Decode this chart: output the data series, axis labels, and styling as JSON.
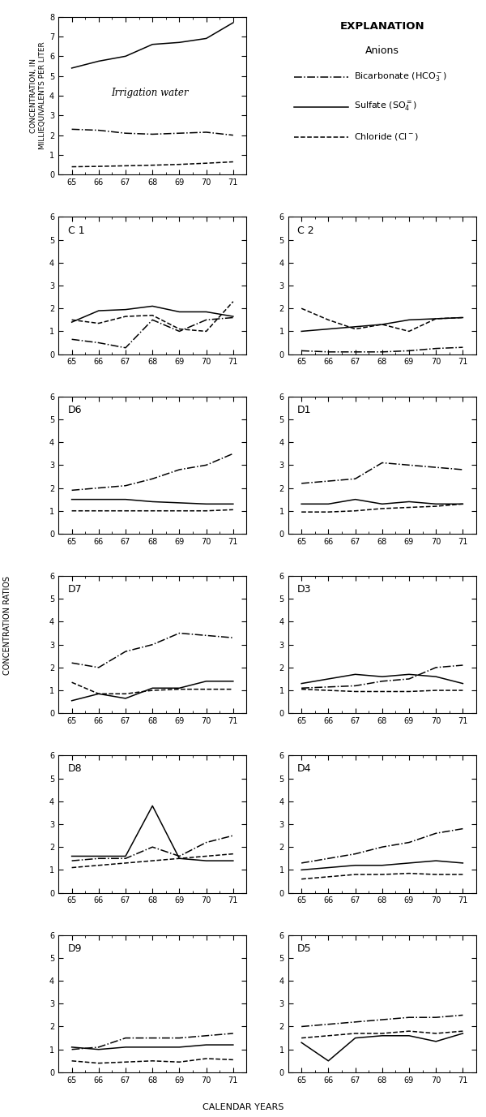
{
  "x": [
    65,
    66,
    67,
    68,
    69,
    70,
    71
  ],
  "irr": {
    "sulfate": [
      5.4,
      5.75,
      6.0,
      6.6,
      6.7,
      6.9,
      7.7
    ],
    "bicarbonate": [
      2.3,
      2.25,
      2.1,
      2.05,
      2.1,
      2.15,
      2.0
    ],
    "chloride": [
      0.4,
      0.42,
      0.45,
      0.48,
      0.52,
      0.58,
      0.65
    ]
  },
  "C1": {
    "sulfate": [
      1.4,
      1.9,
      1.95,
      2.1,
      1.85,
      1.85,
      1.65
    ],
    "bicarbonate": [
      0.65,
      0.5,
      0.28,
      1.5,
      1.0,
      1.5,
      1.6
    ],
    "chloride": [
      1.5,
      1.35,
      1.65,
      1.7,
      1.1,
      1.0,
      2.3
    ]
  },
  "C2": {
    "sulfate": [
      1.0,
      1.1,
      1.2,
      1.3,
      1.5,
      1.55,
      1.6
    ],
    "bicarbonate": [
      0.15,
      0.1,
      0.1,
      0.1,
      0.15,
      0.25,
      0.3
    ],
    "chloride": [
      2.0,
      1.5,
      1.1,
      1.3,
      1.0,
      1.55,
      1.6
    ]
  },
  "D6": {
    "sulfate": [
      1.5,
      1.5,
      1.5,
      1.4,
      1.35,
      1.3,
      1.3
    ],
    "bicarbonate": [
      1.9,
      2.0,
      2.1,
      2.4,
      2.8,
      3.0,
      3.5
    ],
    "chloride": [
      1.0,
      1.0,
      1.0,
      1.0,
      1.0,
      1.0,
      1.05
    ]
  },
  "D1": {
    "sulfate": [
      1.3,
      1.3,
      1.5,
      1.3,
      1.4,
      1.3,
      1.3
    ],
    "bicarbonate": [
      2.2,
      2.3,
      2.4,
      3.1,
      3.0,
      2.9,
      2.8
    ],
    "chloride": [
      0.95,
      0.95,
      1.0,
      1.1,
      1.15,
      1.2,
      1.3
    ]
  },
  "D7": {
    "sulfate": [
      0.55,
      0.85,
      0.65,
      1.1,
      1.1,
      1.4,
      1.4
    ],
    "bicarbonate": [
      2.2,
      2.0,
      2.7,
      3.0,
      3.5,
      3.4,
      3.3
    ],
    "chloride": [
      1.35,
      0.85,
      0.85,
      1.0,
      1.05,
      1.05,
      1.05
    ]
  },
  "D3": {
    "sulfate": [
      1.3,
      1.5,
      1.7,
      1.6,
      1.7,
      1.6,
      1.3
    ],
    "bicarbonate": [
      1.1,
      1.15,
      1.2,
      1.4,
      1.5,
      2.0,
      2.1
    ],
    "chloride": [
      1.05,
      1.0,
      0.95,
      0.95,
      0.95,
      1.0,
      1.0
    ]
  },
  "D8": {
    "sulfate": [
      1.6,
      1.6,
      1.6,
      3.8,
      1.5,
      1.4,
      1.4
    ],
    "bicarbonate": [
      1.4,
      1.5,
      1.5,
      2.0,
      1.6,
      2.2,
      2.5
    ],
    "chloride": [
      1.1,
      1.2,
      1.3,
      1.4,
      1.5,
      1.6,
      1.7
    ]
  },
  "D4": {
    "sulfate": [
      1.0,
      1.1,
      1.2,
      1.2,
      1.3,
      1.4,
      1.3
    ],
    "bicarbonate": [
      1.3,
      1.5,
      1.7,
      2.0,
      2.2,
      2.6,
      2.8
    ],
    "chloride": [
      0.6,
      0.7,
      0.8,
      0.8,
      0.85,
      0.8,
      0.8
    ]
  },
  "D9": {
    "sulfate": [
      1.1,
      1.0,
      1.1,
      1.1,
      1.1,
      1.2,
      1.2
    ],
    "bicarbonate": [
      1.0,
      1.1,
      1.5,
      1.5,
      1.5,
      1.6,
      1.7
    ],
    "chloride": [
      0.5,
      0.4,
      0.45,
      0.5,
      0.45,
      0.6,
      0.55
    ]
  },
  "D5": {
    "sulfate": [
      1.3,
      0.5,
      1.5,
      1.6,
      1.6,
      1.35,
      1.7
    ],
    "bicarbonate": [
      2.0,
      2.1,
      2.2,
      2.3,
      2.4,
      2.4,
      2.5
    ],
    "chloride": [
      1.5,
      1.6,
      1.7,
      1.7,
      1.8,
      1.7,
      1.8
    ]
  },
  "irr_ylim": [
    0,
    8
  ],
  "well_ylim": [
    0,
    6
  ],
  "irr_yticks": [
    0,
    1,
    2,
    3,
    4,
    5,
    6,
    7,
    8
  ],
  "well_yticks": [
    0,
    1,
    2,
    3,
    4,
    5,
    6
  ],
  "xticks": [
    65,
    66,
    67,
    68,
    69,
    70,
    71
  ]
}
